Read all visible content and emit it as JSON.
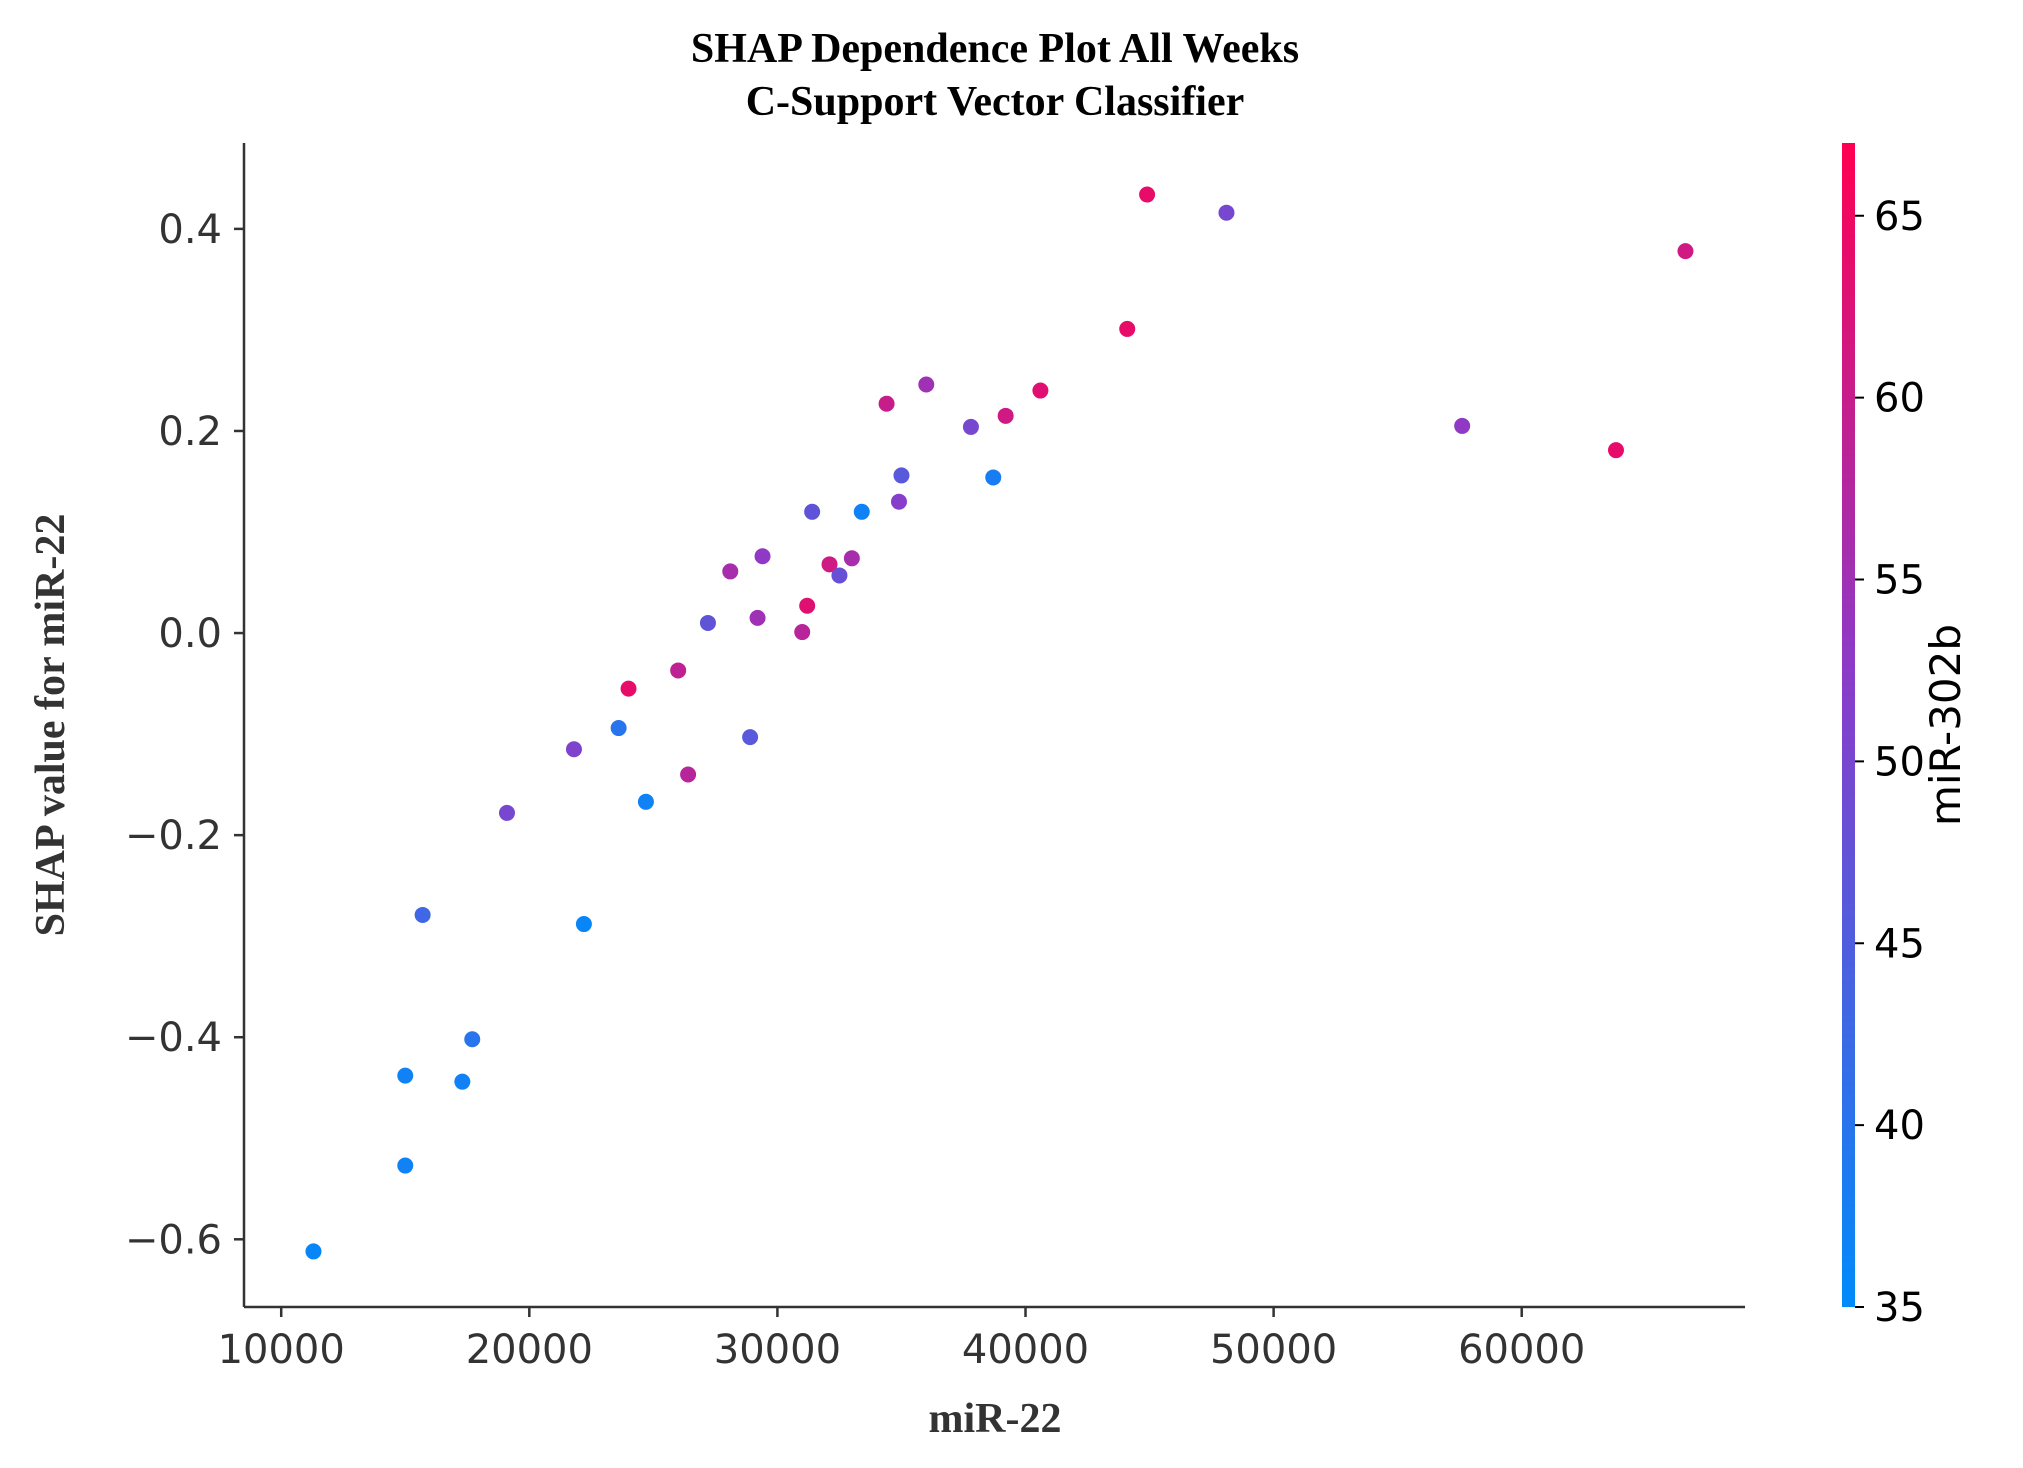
{
  "chart_data": {
    "type": "scatter",
    "title": "SHAP Dependence Plot All Weeks",
    "subtitle": "C-Support Vector Classifier",
    "xlabel": "miR-22",
    "ylabel": "SHAP value for miR-22",
    "xlim": [
      8500,
      69000
    ],
    "ylim": [
      -0.667,
      0.485
    ],
    "xticks": [
      10000,
      20000,
      30000,
      40000,
      50000,
      60000
    ],
    "xtick_labels": [
      "10000",
      "20000",
      "30000",
      "40000",
      "50000",
      "60000"
    ],
    "yticks": [
      0.4,
      0.2,
      0.0,
      -0.2,
      -0.4,
      -0.6
    ],
    "ytick_labels": [
      "0.4",
      "0.2",
      "0.0",
      "−0.2",
      "−0.4",
      "−0.6"
    ],
    "grid": false,
    "colorbar": {
      "label": "miR-302b",
      "range": [
        35,
        67
      ],
      "ticks": [
        35,
        40,
        45,
        50,
        55,
        60,
        65
      ],
      "tick_labels": [
        "35",
        "40",
        "45",
        "50",
        "55",
        "60",
        "65"
      ],
      "colors": [
        "#008bfb",
        "#ff0051"
      ],
      "mid_color": "#8c3bc8"
    },
    "points": [
      {
        "x": 11300,
        "y": -0.612,
        "c": 36
      },
      {
        "x": 15000,
        "y": -0.527,
        "c": 37
      },
      {
        "x": 15000,
        "y": -0.438,
        "c": 37
      },
      {
        "x": 17300,
        "y": -0.444,
        "c": 37
      },
      {
        "x": 17700,
        "y": -0.402,
        "c": 40
      },
      {
        "x": 15700,
        "y": -0.279,
        "c": 43
      },
      {
        "x": 19100,
        "y": -0.178,
        "c": 50
      },
      {
        "x": 21800,
        "y": -0.115,
        "c": 51
      },
      {
        "x": 22200,
        "y": -0.288,
        "c": 36
      },
      {
        "x": 23600,
        "y": -0.094,
        "c": 40
      },
      {
        "x": 24000,
        "y": -0.055,
        "c": 64
      },
      {
        "x": 24700,
        "y": -0.167,
        "c": 37
      },
      {
        "x": 26000,
        "y": -0.037,
        "c": 59
      },
      {
        "x": 26400,
        "y": -0.14,
        "c": 58
      },
      {
        "x": 27200,
        "y": 0.01,
        "c": 47
      },
      {
        "x": 28100,
        "y": 0.061,
        "c": 56
      },
      {
        "x": 28900,
        "y": -0.103,
        "c": 46
      },
      {
        "x": 29200,
        "y": 0.015,
        "c": 55
      },
      {
        "x": 29400,
        "y": 0.076,
        "c": 53
      },
      {
        "x": 31000,
        "y": 0.001,
        "c": 58
      },
      {
        "x": 31200,
        "y": 0.027,
        "c": 63
      },
      {
        "x": 31400,
        "y": 0.12,
        "c": 47
      },
      {
        "x": 32100,
        "y": 0.068,
        "c": 61
      },
      {
        "x": 32500,
        "y": 0.057,
        "c": 48
      },
      {
        "x": 33000,
        "y": 0.074,
        "c": 56
      },
      {
        "x": 33400,
        "y": 0.12,
        "c": 37
      },
      {
        "x": 34400,
        "y": 0.227,
        "c": 60
      },
      {
        "x": 34900,
        "y": 0.13,
        "c": 52
      },
      {
        "x": 35000,
        "y": 0.156,
        "c": 46
      },
      {
        "x": 36000,
        "y": 0.246,
        "c": 55
      },
      {
        "x": 37800,
        "y": 0.204,
        "c": 50
      },
      {
        "x": 38700,
        "y": 0.154,
        "c": 38
      },
      {
        "x": 39200,
        "y": 0.215,
        "c": 61
      },
      {
        "x": 40600,
        "y": 0.24,
        "c": 63
      },
      {
        "x": 44100,
        "y": 0.301,
        "c": 64
      },
      {
        "x": 44900,
        "y": 0.434,
        "c": 64
      },
      {
        "x": 48100,
        "y": 0.416,
        "c": 50
      },
      {
        "x": 57600,
        "y": 0.205,
        "c": 53
      },
      {
        "x": 63800,
        "y": 0.181,
        "c": 64
      },
      {
        "x": 66600,
        "y": 0.378,
        "c": 61
      }
    ]
  }
}
